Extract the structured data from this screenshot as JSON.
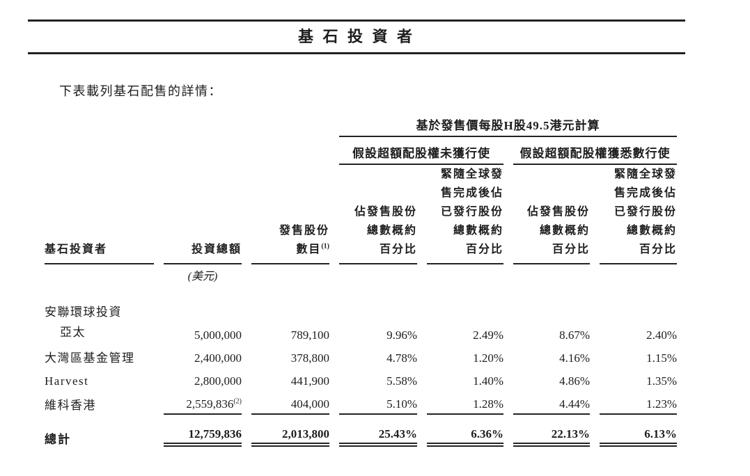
{
  "page": {
    "title": "基 石 投 資 者",
    "intro": "下表載列基石配售的詳情："
  },
  "table": {
    "span_header": "基於發售價每股H股49.5港元計算",
    "groups": {
      "no_exercise": "假設超額配股權未獲行使",
      "full_exercise": "假設超額配股權獲悉數行使"
    },
    "columns": {
      "investor": "基石投資者",
      "investment": "投資總額",
      "investment_unit": "(美元)",
      "shares": {
        "line1": "發售股份",
        "line2": "數目",
        "note": "(1)"
      },
      "pct_offer": {
        "line1": "佔發售股份",
        "line2": "總數概約",
        "line3": "百分比"
      },
      "pct_issued": {
        "line1": "緊隨全球發",
        "line2": "售完成後佔",
        "line3": "已發行股份",
        "line4": "總數概約",
        "line5": "百分比"
      }
    },
    "rows": [
      {
        "name1": "安聯環球投資",
        "name2": "亞太",
        "investment": "5,000,000",
        "shares": "789,100",
        "pct1": "9.96%",
        "pct2": "2.49%",
        "pct3": "8.67%",
        "pct4": "2.40%"
      },
      {
        "name": "大灣區基金管理",
        "investment": "2,400,000",
        "shares": "378,800",
        "pct1": "4.78%",
        "pct2": "1.20%",
        "pct3": "4.16%",
        "pct4": "1.15%"
      },
      {
        "name": "Harvest",
        "investment": "2,800,000",
        "shares": "441,900",
        "pct1": "5.58%",
        "pct2": "1.40%",
        "pct3": "4.86%",
        "pct4": "1.35%"
      },
      {
        "name": "維科香港",
        "investment": "2,559,836",
        "investment_note": "(2)",
        "shares": "404,000",
        "pct1": "5.10%",
        "pct2": "1.28%",
        "pct3": "4.44%",
        "pct4": "1.23%"
      }
    ],
    "total": {
      "label": "總計",
      "investment": "12,759,836",
      "shares": "2,013,800",
      "pct1": "25.43%",
      "pct2": "6.36%",
      "pct3": "22.13%",
      "pct4": "6.13%"
    }
  }
}
